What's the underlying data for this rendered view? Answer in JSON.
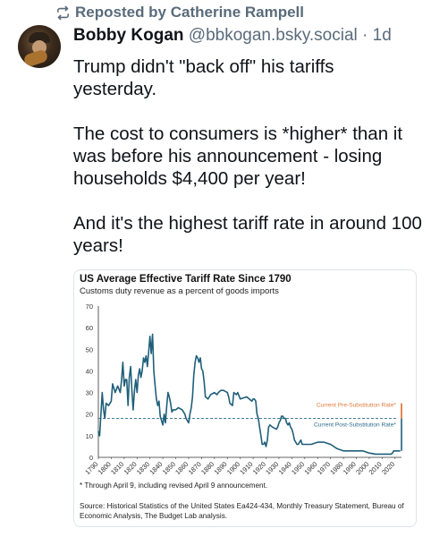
{
  "repost": {
    "label": "Reposted by Catherine Rampell",
    "icon": "repost-icon"
  },
  "post": {
    "author_name": "Bobby Kogan",
    "handle": "@bbkogan.bsky.social",
    "separator": "·",
    "time": "1d",
    "paragraphs": [
      "Trump didn't \"back off\" his tariffs yesterday.",
      "The cost to consumers is *higher* than it was before his announcement - losing households $4,400 per year!",
      "And it's the highest tariff rate in around 100 years!"
    ]
  },
  "colors": {
    "line": "#1f5f7a",
    "orange": "#e07a3c",
    "dashed": "#2b6c8a",
    "muted": "#5a6b7b"
  },
  "chart_data": {
    "type": "line",
    "title": "US Average Effective Tariff Rate Since 1790",
    "subtitle": "Customs duty revenue as a percent of goods imports",
    "footnote": "* Through April 9, including revised April 9 announcement.",
    "source": "Source: Historical Statistics of the United States Ea424-434, Monthly Treasury Statement, Bureau of  Economic Analysis, The Budget Lab analysis.",
    "xlim": [
      1790,
      2025
    ],
    "ylim": [
      0,
      70
    ],
    "y_ticks": [
      "0",
      "10",
      "20",
      "30",
      "40",
      "50",
      "60",
      "70"
    ],
    "x_ticks": [
      "1790",
      "1800",
      "1810",
      "1820",
      "1830",
      "1840",
      "1850",
      "1860",
      "1870",
      "1880",
      "1890",
      "1900",
      "1910",
      "1920",
      "1930",
      "1940",
      "1950",
      "1960",
      "1970",
      "1980",
      "1990",
      "2000",
      "2010",
      "2020"
    ],
    "grid": false,
    "series": [
      {
        "x": [
          1790,
          1791,
          1792,
          1793,
          1794,
          1795,
          1796,
          1798,
          1800,
          1801,
          1803,
          1805,
          1807,
          1808,
          1809,
          1810,
          1811,
          1812,
          1813,
          1814,
          1815,
          1816,
          1817,
          1818,
          1819,
          1820,
          1821,
          1822,
          1823,
          1824,
          1825,
          1826,
          1827,
          1828,
          1829,
          1830,
          1831,
          1832,
          1833,
          1834,
          1835,
          1836,
          1837,
          1838,
          1839,
          1840,
          1841,
          1842,
          1843,
          1844,
          1845,
          1846,
          1847,
          1848,
          1850,
          1852,
          1855,
          1857,
          1858,
          1859,
          1860,
          1861,
          1862,
          1863,
          1864,
          1865,
          1866,
          1867,
          1868,
          1869,
          1870,
          1871,
          1872,
          1873,
          1875,
          1877,
          1880,
          1882,
          1883,
          1885,
          1887,
          1890,
          1891,
          1892,
          1894,
          1895,
          1897,
          1898,
          1900,
          1905,
          1909,
          1910,
          1911,
          1912,
          1913,
          1914,
          1915,
          1916,
          1917,
          1918,
          1919,
          1920,
          1921,
          1922,
          1923,
          1925,
          1928,
          1929,
          1930,
          1931,
          1932,
          1933,
          1934,
          1935,
          1936,
          1937,
          1938,
          1939,
          1940,
          1941,
          1942,
          1943,
          1944,
          1945,
          1946,
          1947,
          1948,
          1950,
          1955,
          1960,
          1965,
          1970,
          1975,
          1980,
          1985,
          1990,
          1995,
          2000,
          2005,
          2010,
          2015,
          2017,
          2018,
          2019,
          2020,
          2021,
          2022,
          2023,
          2024
        ],
        "values": [
          12,
          10,
          20,
          30,
          22,
          18,
          25,
          24,
          26,
          34,
          30,
          33,
          30,
          36,
          44,
          33,
          36,
          36,
          24,
          37,
          42,
          31,
          22,
          31,
          36,
          30,
          38,
          41,
          37,
          40,
          46,
          44,
          47,
          42,
          49,
          56,
          48,
          57,
          40,
          33,
          27,
          24,
          26,
          19,
          17,
          15,
          20,
          16,
          24,
          30,
          28,
          25,
          21,
          22,
          22,
          23,
          22,
          20,
          18,
          17,
          16,
          20,
          23,
          28,
          38,
          44,
          47,
          46,
          44,
          46,
          41,
          40,
          35,
          28,
          27,
          29,
          30,
          29,
          30,
          31,
          31,
          30,
          28,
          25,
          24,
          30,
          29,
          30,
          27,
          28,
          26,
          27,
          27,
          26,
          20,
          18,
          14,
          10,
          6,
          6,
          7,
          5,
          8,
          14,
          15,
          14,
          13,
          14,
          16,
          17,
          19,
          19,
          18,
          18,
          16,
          15,
          16,
          14,
          13,
          11,
          8,
          7,
          6,
          6,
          7,
          8,
          6,
          6,
          6,
          7,
          7,
          6,
          4,
          3,
          3,
          3,
          3,
          2,
          1.5,
          1.5,
          1.5,
          1.5,
          2,
          3,
          3,
          3,
          3,
          3,
          3
        ]
      }
    ],
    "annotations": [
      {
        "label": "Current Pre-Substitution Rate*",
        "value": 25,
        "color": "orange"
      },
      {
        "label": "Current Post-Substitution Rate*",
        "value": 18,
        "color": "dashed"
      }
    ],
    "spike": {
      "x": 2025,
      "from": 3,
      "to": 25
    }
  }
}
